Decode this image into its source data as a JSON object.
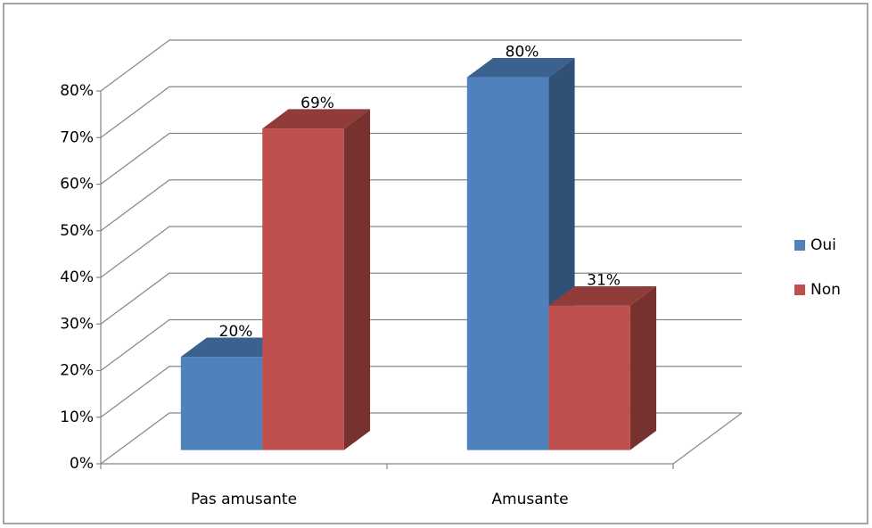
{
  "chart_data": {
    "type": "bar3d",
    "categories": [
      "Pas amusante",
      "Amusante"
    ],
    "series": [
      {
        "name": "Oui",
        "color": "#4f81bd",
        "values": [
          20,
          80
        ],
        "value_labels": [
          "20%",
          "80%"
        ]
      },
      {
        "name": "Non",
        "color": "#c0504d",
        "values": [
          69,
          31
        ],
        "value_labels": [
          "69%",
          "31%"
        ]
      }
    ],
    "ylim": [
      0,
      80
    ],
    "yticks": [
      {
        "value": 0,
        "label": "0%"
      },
      {
        "value": 10,
        "label": "10%"
      },
      {
        "value": 20,
        "label": "20%"
      },
      {
        "value": 30,
        "label": "30%"
      },
      {
        "value": 40,
        "label": "40%"
      },
      {
        "value": 50,
        "label": "50%"
      },
      {
        "value": 60,
        "label": "60%"
      },
      {
        "value": 70,
        "label": "70%"
      },
      {
        "value": 80,
        "label": "80%"
      }
    ],
    "grid": true,
    "legend": "right"
  }
}
